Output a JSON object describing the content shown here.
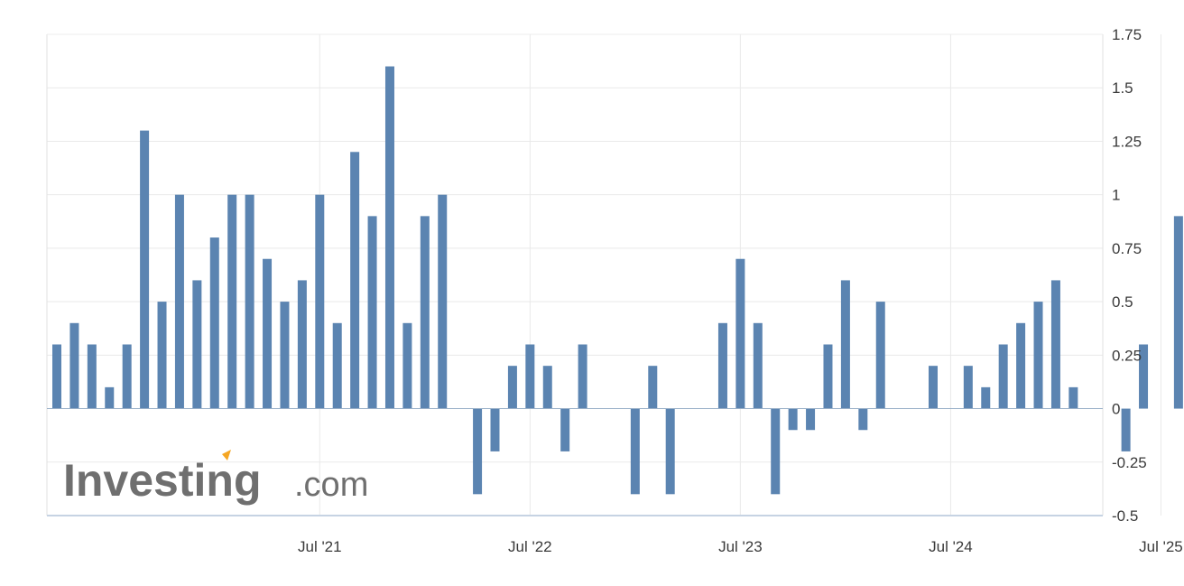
{
  "watermark": {
    "brand": "Investing",
    "suffix": ".com",
    "accent": "#f5a623"
  },
  "colors": {
    "bar": "#5b84b1",
    "grid": "#e9e9e9",
    "axis": "#c6d3e3",
    "text": "#3a3a3a"
  },
  "chart_data": {
    "type": "bar",
    "title": "",
    "xlabel": "",
    "ylabel": "",
    "ylim": [
      -0.5,
      1.75
    ],
    "yticks": [
      "1.75",
      "1.5",
      "1.25",
      "1",
      "0.75",
      "0.5",
      "0.25",
      "0",
      "-0.25",
      "-0.5"
    ],
    "ytick_values": [
      1.75,
      1.5,
      1.25,
      1,
      0.75,
      0.5,
      0.25,
      0,
      -0.25,
      -0.5
    ],
    "yaxis_side": "right",
    "grid": true,
    "x_start": "2020-04",
    "xtick_labels": [
      "Jul '21",
      "Jul '22",
      "Jul '23",
      "Jul '24",
      "Jul '25"
    ],
    "xtick_months": [
      "2021-07",
      "2022-07",
      "2023-07",
      "2024-07",
      "2025-07"
    ],
    "categories": [
      "2020-04",
      "2020-05",
      "2020-06",
      "2020-07",
      "2020-08",
      "2020-09",
      "2020-10",
      "2020-11",
      "2020-12",
      "2021-01",
      "2021-02",
      "2021-03",
      "2021-04",
      "2021-05",
      "2021-06",
      "2021-07",
      "2021-08",
      "2021-09",
      "2021-10",
      "2021-11",
      "2021-12",
      "2022-01",
      "2022-02",
      "2022-03",
      "2022-04",
      "2022-05",
      "2022-06",
      "2022-07",
      "2022-08",
      "2022-09",
      "2022-10",
      "2022-11",
      "2022-12",
      "2023-01",
      "2023-02",
      "2023-03",
      "2023-04",
      "2023-05",
      "2023-06",
      "2023-07",
      "2023-08",
      "2023-09",
      "2023-10",
      "2023-11",
      "2023-12",
      "2024-01",
      "2024-02",
      "2024-03",
      "2024-04",
      "2024-05",
      "2024-06",
      "2024-07",
      "2024-08",
      "2024-09",
      "2024-10",
      "2024-11",
      "2024-12",
      "2025-01",
      "2025-02",
      "2025-03",
      "2025-04",
      "2025-05",
      "2025-06",
      "2025-07",
      "2025-08",
      "2025-09"
    ],
    "values": [
      0.3,
      0.4,
      0.3,
      0.1,
      0.3,
      1.3,
      0.5,
      1.0,
      0.6,
      0.8,
      1.0,
      1.0,
      0.7,
      0.5,
      0.6,
      1.0,
      0.4,
      1.2,
      0.9,
      1.6,
      0.4,
      0.9,
      1.0,
      0,
      -0.4,
      -0.2,
      0.2,
      0.3,
      0.2,
      -0.2,
      0.3,
      0,
      0,
      -0.4,
      0.2,
      -0.4,
      0,
      0,
      0.4,
      0.7,
      0.4,
      -0.4,
      -0.1,
      -0.1,
      0.3,
      0.6,
      -0.1,
      0.5,
      0,
      0,
      0.2,
      0,
      0.2,
      0.1,
      0.3,
      0.4,
      0.5,
      0.6,
      0.1,
      0,
      0,
      -0.2,
      0.3,
      0,
      0.9,
      0
    ]
  }
}
